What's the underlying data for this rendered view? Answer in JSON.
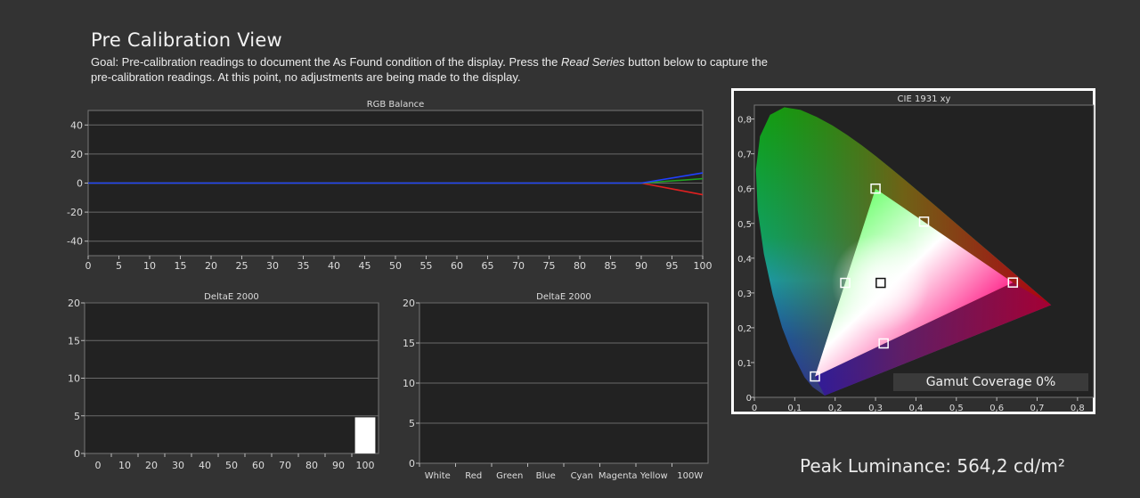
{
  "page": {
    "title": "Pre Calibration View",
    "goal_prefix": "Goal: Pre-calibration readings to document the As Found condition of the display. Press the ",
    "goal_emph": "Read Series",
    "goal_suffix": " button below to capture the pre-calibration readings. At this point, no adjustments are being made to the display."
  },
  "colors": {
    "background": "#333333",
    "plot_bg": "#222222",
    "grid": "#6a6a6a",
    "red": "#e02020",
    "green": "#20a020",
    "blue": "#2040ff"
  },
  "chart_data": [
    {
      "type": "line",
      "title": "RGB Balance",
      "x_ticks": [
        "0",
        "5",
        "10",
        "15",
        "20",
        "25",
        "30",
        "35",
        "40",
        "45",
        "50",
        "55",
        "60",
        "65",
        "70",
        "75",
        "80",
        "85",
        "90",
        "95",
        "100"
      ],
      "y_ticks": [
        "40",
        "20",
        "0",
        "-20",
        "-40"
      ],
      "xlim": [
        0,
        100
      ],
      "ylim": [
        -50,
        50
      ],
      "series": [
        {
          "color": "#e02020",
          "x": [
            0,
            90,
            100
          ],
          "y": [
            0,
            0,
            -8
          ]
        },
        {
          "color": "#20a020",
          "x": [
            0,
            90,
            100
          ],
          "y": [
            0,
            0,
            3
          ]
        },
        {
          "color": "#2040ff",
          "x": [
            0,
            90,
            100
          ],
          "y": [
            0,
            0,
            7
          ]
        }
      ]
    },
    {
      "type": "bar",
      "title": "DeltaE 2000",
      "categories": [
        "0",
        "10",
        "20",
        "30",
        "40",
        "50",
        "60",
        "70",
        "80",
        "90",
        "100"
      ],
      "values": [
        0,
        0,
        0,
        0,
        0,
        0,
        0,
        0,
        0,
        0,
        4.8
      ],
      "y_ticks": [
        "20",
        "15",
        "10",
        "5",
        "0"
      ],
      "ylim": [
        0,
        20
      ]
    },
    {
      "type": "bar",
      "title": "DeltaE 2000",
      "categories": [
        "White",
        "Red",
        "Green",
        "Blue",
        "Cyan",
        "Magenta",
        "Yellow",
        "100W"
      ],
      "values": [
        0,
        0,
        0,
        0,
        0,
        0,
        0,
        0
      ],
      "y_ticks": [
        "20",
        "15",
        "10",
        "5",
        "0"
      ],
      "ylim": [
        0,
        20
      ]
    },
    {
      "type": "scatter",
      "title": "CIE 1931 xy",
      "x_ticks": [
        "0",
        "0,1",
        "0,2",
        "0,3",
        "0,4",
        "0,5",
        "0,6",
        "0,7",
        "0,8"
      ],
      "y_ticks": [
        "0,8",
        "0,7",
        "0,6",
        "0,5",
        "0,4",
        "0,3",
        "0,2",
        "0,1",
        "0"
      ],
      "xlim": [
        0,
        0.84
      ],
      "ylim": [
        0,
        0.84
      ],
      "points": [
        {
          "x": 0.3,
          "y": 0.6
        },
        {
          "x": 0.42,
          "y": 0.505
        },
        {
          "x": 0.64,
          "y": 0.33
        },
        {
          "x": 0.3127,
          "y": 0.329
        },
        {
          "x": 0.225,
          "y": 0.329
        },
        {
          "x": 0.32,
          "y": 0.155
        },
        {
          "x": 0.15,
          "y": 0.06
        }
      ],
      "gamut": "Gamut Coverage 0%"
    }
  ],
  "footer": {
    "peak_luminance": "Peak Luminance: 564,2 cd/m²"
  }
}
